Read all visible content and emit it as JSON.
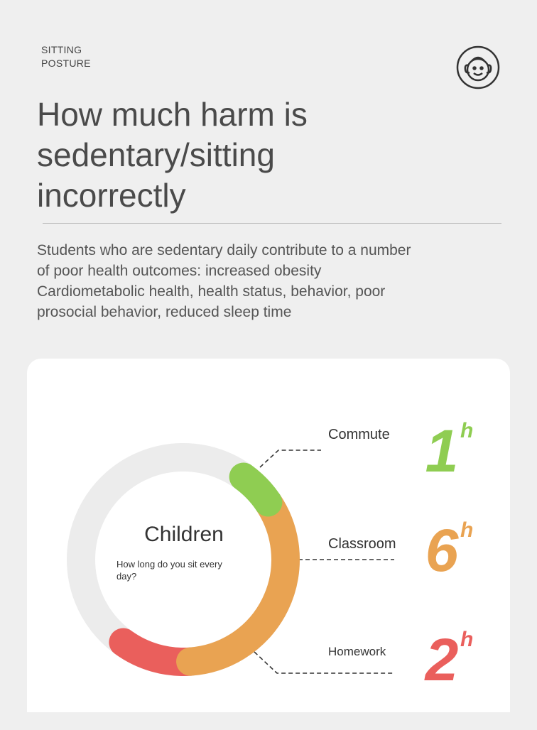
{
  "header": {
    "category": [
      "SITTING",
      "POSTURE"
    ],
    "title": "How much harm is sedentary/sitting incorrectly",
    "description": "Students who are sedentary daily contribute to a number of poor health outcomes: increased obesity Cardiometabolic health, health status, behavior, poor prosocial behavior, reduced sleep time"
  },
  "card": {
    "center_title": "Children",
    "center_subtitle": "How long do you sit every day?",
    "items": [
      {
        "label": "Commute",
        "value": 1,
        "unit": "h",
        "color": "#8fcd52"
      },
      {
        "label": "Classroom",
        "value": 6,
        "unit": "h",
        "color": "#e9a352"
      },
      {
        "label": "Homework",
        "value": 2,
        "unit": "h",
        "color": "#ea5f5c"
      }
    ]
  }
}
